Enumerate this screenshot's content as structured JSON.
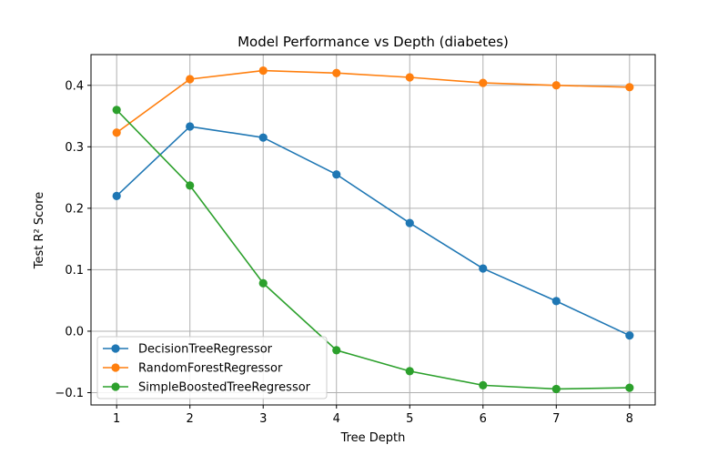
{
  "chart_data": {
    "type": "line",
    "title": "Model Performance vs Depth (diabetes)",
    "xlabel": "Tree Depth",
    "ylabel": "Test R² Score",
    "x": [
      1,
      2,
      3,
      4,
      5,
      6,
      7,
      8
    ],
    "xticks": [
      "1",
      "2",
      "3",
      "4",
      "5",
      "6",
      "7",
      "8"
    ],
    "yticks": [
      -0.1,
      0.0,
      0.1,
      0.2,
      0.3,
      0.4
    ],
    "ytick_labels": [
      "−0.1",
      "0.0",
      "0.1",
      "0.2",
      "0.3",
      "0.4"
    ],
    "xlim": [
      0.65,
      8.35
    ],
    "ylim": [
      -0.12,
      0.45
    ],
    "grid": true,
    "legend_position": "lower-left",
    "series": [
      {
        "name": "DecisionTreeRegressor",
        "color": "#1f77b4",
        "values": [
          0.22,
          0.333,
          0.315,
          0.255,
          0.176,
          0.102,
          0.049,
          -0.007
        ]
      },
      {
        "name": "RandomForestRegressor",
        "color": "#ff7f0e",
        "values": [
          0.323,
          0.41,
          0.424,
          0.42,
          0.413,
          0.404,
          0.4,
          0.397
        ]
      },
      {
        "name": "SimpleBoostedTreeRegressor",
        "color": "#2ca02c",
        "values": [
          0.36,
          0.237,
          0.078,
          -0.031,
          -0.065,
          -0.088,
          -0.094,
          -0.092
        ]
      }
    ]
  }
}
